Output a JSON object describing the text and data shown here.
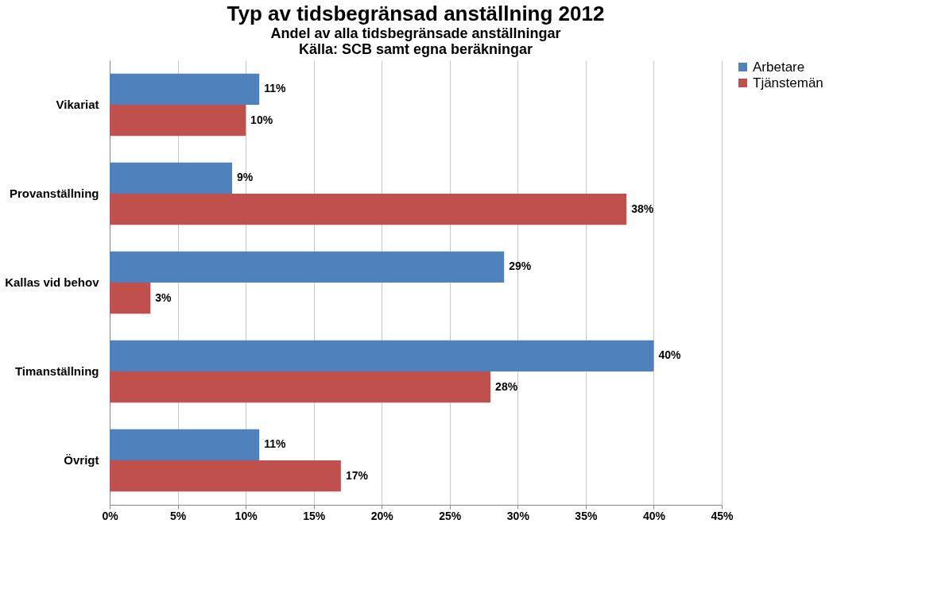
{
  "chart_data": {
    "type": "bar",
    "orientation": "horizontal",
    "title": "Typ av tidsbegränsad anställning 2012",
    "subtitle": "Andel av alla tidsbegränsade anställningar",
    "annotations": [
      "Källa: SCB samt egna beräkningar"
    ],
    "categories": [
      "Vikariat",
      "Provanställning",
      "Kallas vid behov",
      "Timanställning",
      "Övrigt"
    ],
    "series": [
      {
        "name": "Arbetare",
        "color": "#4f81bd",
        "values": [
          11,
          9,
          29,
          40,
          11
        ],
        "value_labels": [
          "11%",
          "9%",
          "29%",
          "40%",
          "11%"
        ]
      },
      {
        "name": "Tjänstemän",
        "color": "#c0504d",
        "values": [
          10,
          38,
          3,
          28,
          17
        ],
        "value_labels": [
          "10%",
          "38%",
          "3%",
          "28%",
          "17%"
        ]
      }
    ],
    "xlim": [
      0,
      45
    ],
    "xticks": [
      {
        "value": 0,
        "label": "0%"
      },
      {
        "value": 5,
        "label": "5%"
      },
      {
        "value": 10,
        "label": "10%"
      },
      {
        "value": 15,
        "label": "15%"
      },
      {
        "value": 20,
        "label": "20%"
      },
      {
        "value": 25,
        "label": "25%"
      },
      {
        "value": 30,
        "label": "30%"
      },
      {
        "value": 35,
        "label": "35%"
      },
      {
        "value": 40,
        "label": "40%"
      },
      {
        "value": 45,
        "label": "45%"
      }
    ],
    "grid": "x",
    "legend": "right"
  }
}
